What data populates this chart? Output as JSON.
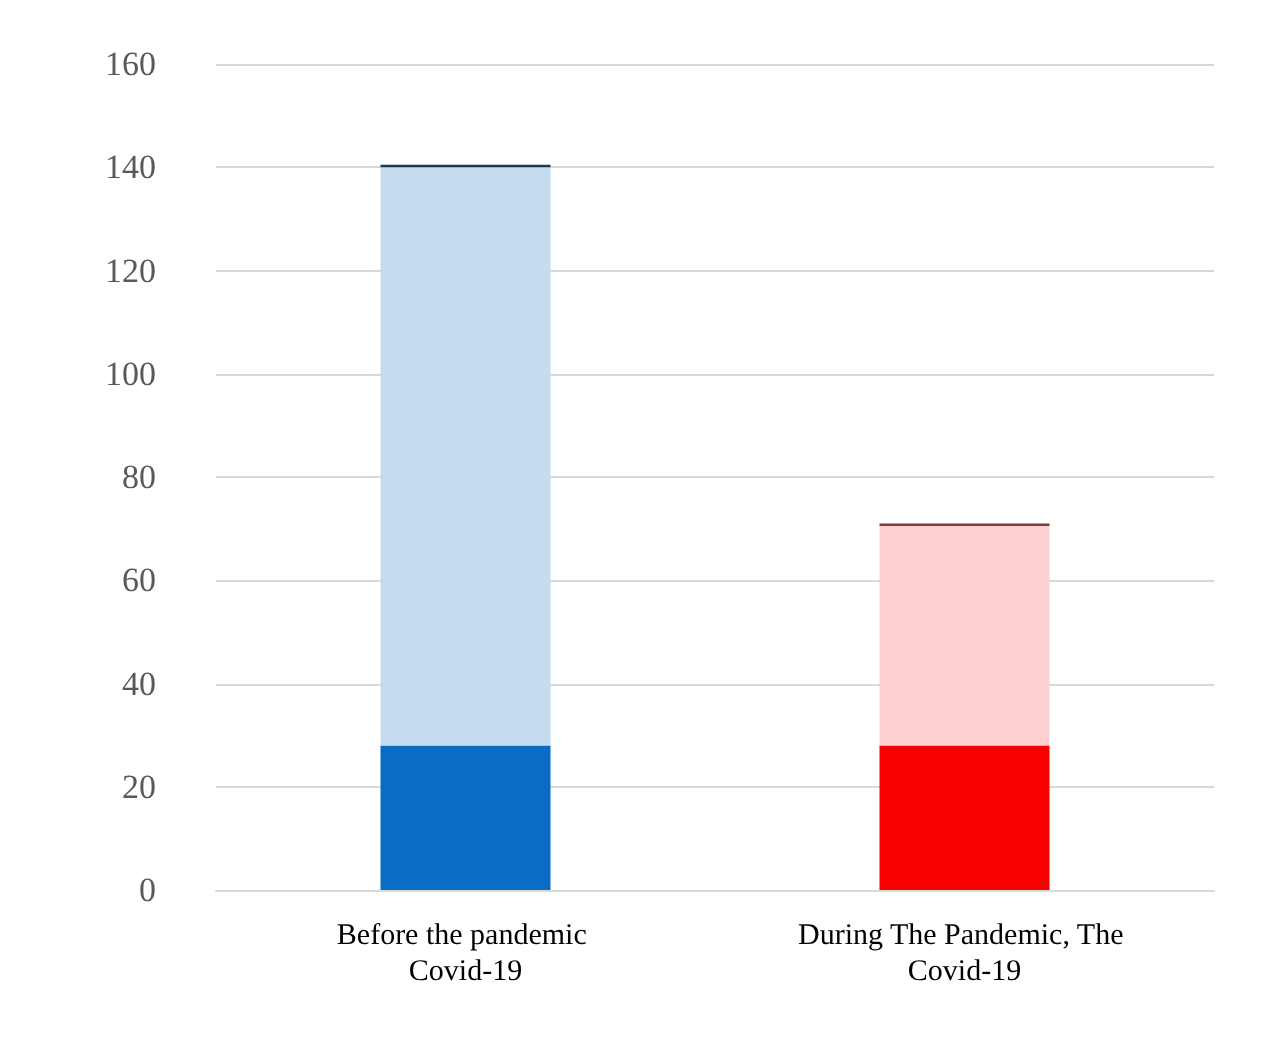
{
  "chart_data": {
    "type": "bar",
    "stacked": true,
    "categories": [
      "Before the pandemic Covid-19",
      "During The Pandemic, The Covid-19"
    ],
    "series": [
      {
        "colors": [
          "#0a6cc4",
          "#f70000"
        ],
        "values": [
          28,
          28
        ]
      },
      {
        "colors": [
          "#c5dcef",
          "#ffd0d2"
        ],
        "values": [
          112,
          42.5
        ]
      },
      {
        "colors": [
          "#1f3a50",
          "#7a3a40"
        ],
        "values": [
          0.5,
          0.5
        ]
      }
    ],
    "ylim": [
      0,
      160
    ],
    "yticks": [
      0,
      20,
      40,
      60,
      80,
      100,
      120,
      140,
      160
    ],
    "grid": "y"
  }
}
